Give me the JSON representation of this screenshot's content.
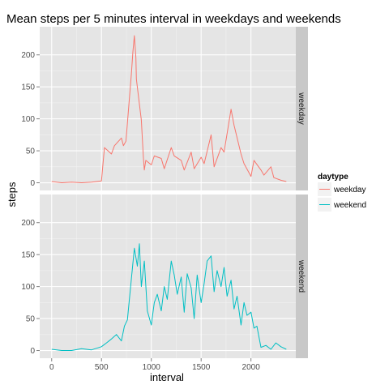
{
  "chart_data": {
    "type": "line",
    "title": "Mean steps per 5 minutes interval in weekdays and weekends",
    "xlabel": "interval",
    "ylabel": "steps",
    "xlim": [
      -120,
      2450
    ],
    "ylim": [
      -12,
      244
    ],
    "xticks": [
      0,
      500,
      1000,
      1500,
      2000
    ],
    "yticks": [
      0,
      50,
      100,
      150,
      200
    ],
    "grid": true,
    "legend": {
      "title": "daytype",
      "position": "right"
    },
    "colors": {
      "weekday": "#f8766d",
      "weekend": "#00bfc4",
      "panel": "#e5e5e5",
      "strip": "#c8c8c8",
      "legend_key": "#f2f2f2"
    },
    "panels": [
      {
        "strip": "weekday",
        "series": {
          "name": "weekday",
          "x": [
            0,
            100,
            200,
            300,
            400,
            500,
            530,
            600,
            630,
            700,
            720,
            745,
            800,
            815,
            830,
            845,
            850,
            900,
            920,
            930,
            945,
            1000,
            1030,
            1100,
            1130,
            1200,
            1230,
            1300,
            1330,
            1400,
            1430,
            1500,
            1530,
            1600,
            1630,
            1700,
            1730,
            1800,
            1830,
            1900,
            1930,
            2000,
            2030,
            2100,
            2130,
            2200,
            2230,
            2300,
            2355
          ],
          "y": [
            2,
            0,
            1,
            0,
            1,
            3,
            55,
            45,
            58,
            70,
            58,
            65,
            170,
            205,
            230,
            195,
            162,
            98,
            40,
            20,
            35,
            28,
            42,
            38,
            22,
            55,
            42,
            35,
            20,
            48,
            22,
            40,
            30,
            75,
            25,
            55,
            48,
            115,
            90,
            45,
            30,
            10,
            35,
            20,
            12,
            25,
            8,
            4,
            2
          ]
        }
      },
      {
        "strip": "weekend",
        "series": {
          "name": "weekend",
          "x": [
            0,
            100,
            200,
            300,
            400,
            500,
            550,
            600,
            650,
            700,
            730,
            760,
            800,
            830,
            860,
            880,
            900,
            930,
            960,
            1000,
            1030,
            1060,
            1100,
            1130,
            1160,
            1200,
            1230,
            1260,
            1300,
            1330,
            1360,
            1400,
            1430,
            1460,
            1500,
            1530,
            1560,
            1600,
            1630,
            1660,
            1700,
            1730,
            1760,
            1800,
            1830,
            1860,
            1900,
            1930,
            1960,
            2000,
            2030,
            2060,
            2100,
            2150,
            2200,
            2250,
            2300,
            2355
          ],
          "y": [
            2,
            0,
            0,
            3,
            1,
            6,
            12,
            18,
            25,
            15,
            38,
            48,
            112,
            160,
            132,
            167,
            100,
            140,
            62,
            40,
            75,
            88,
            62,
            100,
            80,
            140,
            118,
            88,
            115,
            60,
            120,
            98,
            50,
            118,
            75,
            105,
            140,
            148,
            92,
            125,
            100,
            130,
            85,
            110,
            65,
            85,
            40,
            75,
            55,
            60,
            35,
            38,
            5,
            8,
            2,
            12,
            6,
            2
          ]
        }
      }
    ]
  }
}
